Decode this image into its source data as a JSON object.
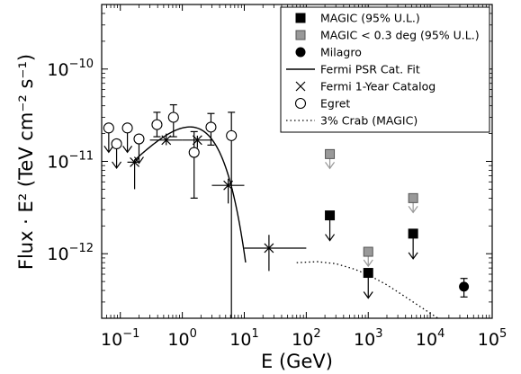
{
  "chart_data": {
    "type": "scatter",
    "xlabel": "E (GeV)",
    "ylabel": "Flux · E² (TeV cm⁻² s⁻¹)",
    "xscale": "log",
    "yscale": "log",
    "xlim": [
      0.05,
      100000
    ],
    "ylim": [
      2e-13,
      5e-10
    ],
    "grid": false,
    "legend_position": "top-right",
    "x_ticks": [
      {
        "value": 0.1,
        "base": "10",
        "exp": "-1"
      },
      {
        "value": 1,
        "base": "10",
        "exp": "0"
      },
      {
        "value": 10,
        "base": "10",
        "exp": "1"
      },
      {
        "value": 100,
        "base": "10",
        "exp": "2"
      },
      {
        "value": 1000,
        "base": "10",
        "exp": "3"
      },
      {
        "value": 10000,
        "base": "10",
        "exp": "4"
      },
      {
        "value": 100000,
        "base": "10",
        "exp": "5"
      }
    ],
    "y_ticks": [
      {
        "value": 1e-12,
        "base": "10",
        "exp": "-12"
      },
      {
        "value": 1e-11,
        "base": "10",
        "exp": "-11"
      },
      {
        "value": 1e-10,
        "base": "10",
        "exp": "-10"
      }
    ],
    "series": [
      {
        "name": "MAGIC (95% U.L.)",
        "marker": "square",
        "color": "#000000",
        "upper_limit": true,
        "points": [
          {
            "x": 240,
            "y": 2.6e-12
          },
          {
            "x": 1000,
            "y": 6.2e-13
          },
          {
            "x": 5300,
            "y": 1.65e-12
          }
        ]
      },
      {
        "name": "MAGIC < 0.3 deg (95% U.L.)",
        "marker": "square",
        "color": "#999999",
        "upper_limit": true,
        "points": [
          {
            "x": 240,
            "y": 1.2e-11
          },
          {
            "x": 1000,
            "y": 1.05e-12
          },
          {
            "x": 5300,
            "y": 4e-12
          }
        ]
      },
      {
        "name": "Milagro",
        "marker": "circle",
        "color": "#000000",
        "points": [
          {
            "x": 35000,
            "y": 4.4e-13,
            "ylo": 3.4e-13,
            "yhi": 5.4e-13
          }
        ]
      },
      {
        "name": "Fermi PSR Cat. Fit",
        "line": "solid",
        "color": "#000000",
        "x_range": [
          0.17,
          10.5
        ],
        "amplitude": 2.3e-11,
        "index": 1.3,
        "cutoff_gev": 1.9
      },
      {
        "name": "Fermi 1-Year Catalog",
        "marker": "cross",
        "color": "#000000",
        "points": [
          {
            "x": 0.17,
            "y": 9.8e-12,
            "xlo": 0.13,
            "xhi": 0.2,
            "ylo": 5e-12,
            "yhi": 1.05e-11
          },
          {
            "x": 0.55,
            "y": 1.7e-11,
            "xlo": 0.3,
            "xhi": 1.0,
            "ylo": 1.5e-11,
            "yhi": 2e-11
          },
          {
            "x": 1.75,
            "y": 1.7e-11,
            "xlo": 1.0,
            "xhi": 3.0,
            "ylo": 1.4e-11,
            "yhi": 1.9e-11
          },
          {
            "x": 5.5,
            "y": 5.5e-12,
            "xlo": 3.0,
            "xhi": 10.0,
            "ylo": 3.5e-12,
            "yhi": 6.5e-12
          },
          {
            "x": 25,
            "y": 1.15e-12,
            "xlo": 10.0,
            "xhi": 100.0,
            "ylo": 6.5e-13,
            "yhi": 1.6e-12
          }
        ]
      },
      {
        "name": "Egret",
        "marker": "open-circle",
        "color": "#000000",
        "points": [
          {
            "x": 0.065,
            "y": 2.3e-11,
            "upper_limit": true
          },
          {
            "x": 0.087,
            "y": 1.55e-11,
            "upper_limit": true
          },
          {
            "x": 0.13,
            "y": 2.3e-11,
            "upper_limit": true
          },
          {
            "x": 0.2,
            "y": 1.75e-11,
            "upper_limit": true
          },
          {
            "x": 0.39,
            "y": 2.5e-11,
            "ylo": 1.85e-11,
            "yhi": 3.4e-11
          },
          {
            "x": 0.72,
            "y": 3e-11,
            "ylo": 1.85e-11,
            "yhi": 4.1e-11
          },
          {
            "x": 1.55,
            "y": 1.25e-11,
            "ylo": 4e-12,
            "yhi": 2.1e-11
          },
          {
            "x": 2.9,
            "y": 2.35e-11,
            "ylo": 1.5e-11,
            "yhi": 3.3e-11
          },
          {
            "x": 6.2,
            "y": 1.9e-11,
            "ylo": 2e-13,
            "yhi": 3.4e-11
          }
        ]
      },
      {
        "name": "3% Crab (MAGIC)",
        "line": "dotted",
        "color": "#000000",
        "x_range": [
          70,
          25000
        ],
        "points": [
          {
            "x": 70,
            "y": 8e-13
          },
          {
            "x": 150,
            "y": 8.2e-13
          },
          {
            "x": 300,
            "y": 7.8e-13
          },
          {
            "x": 600,
            "y": 6.8e-13
          },
          {
            "x": 1000,
            "y": 5.9e-13
          },
          {
            "x": 2000,
            "y": 4.6e-13
          },
          {
            "x": 4000,
            "y": 3.4e-13
          },
          {
            "x": 8000,
            "y": 2.5e-13
          },
          {
            "x": 15000,
            "y": 1.9e-13
          }
        ]
      }
    ]
  }
}
